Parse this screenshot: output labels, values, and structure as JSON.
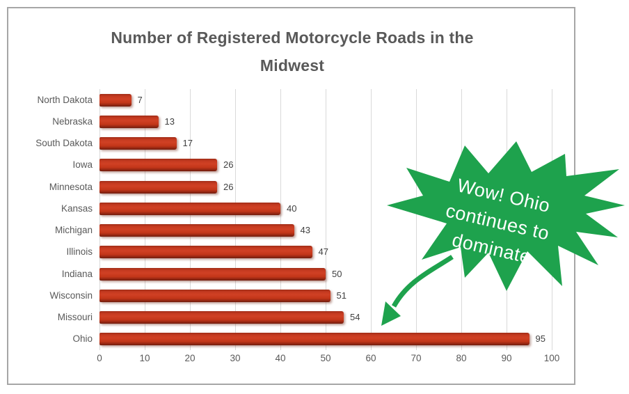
{
  "title": {
    "line1": "Number of Registered Motorcycle Roads in the",
    "line2": "Midwest"
  },
  "chart_data": {
    "type": "bar",
    "orientation": "horizontal",
    "title": "Number of Registered Motorcycle Roads in the Midwest",
    "categories": [
      "North Dakota",
      "Nebraska",
      "South Dakota",
      "Iowa",
      "Minnesota",
      "Kansas",
      "Michigan",
      "Illinois",
      "Indiana",
      "Wisconsin",
      "Missouri",
      "Ohio"
    ],
    "values": [
      7,
      13,
      17,
      26,
      26,
      40,
      43,
      47,
      50,
      51,
      54,
      95
    ],
    "data_labels_shown": true,
    "xlabel": "",
    "ylabel": "",
    "xlim": [
      0,
      100
    ],
    "x_ticks": [
      0,
      10,
      20,
      30,
      40,
      50,
      60,
      70,
      80,
      90,
      100
    ],
    "grid": true,
    "legend": false,
    "bar_color": "#C13A21",
    "gridline_color": "#D9D9D9",
    "axis_text_color": "#595959",
    "data_label_color": "#404040",
    "title_color": "#595959"
  },
  "callout": {
    "lines": [
      "Wow! Ohio",
      "continues to",
      "dominate"
    ],
    "shape": "starburst-explosion",
    "fill_color": "#1EA24D",
    "text_color": "#FFFFFF",
    "arrow": "curved-arrow-pointing-to-ohio-bar"
  },
  "frame": {
    "border_color": "#A6A6A6",
    "background_color": "#FFFFFF"
  }
}
